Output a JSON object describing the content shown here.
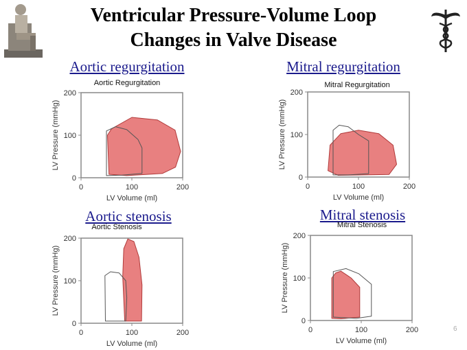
{
  "slide": {
    "title_line1": "Ventricular Pressure-Volume Loop",
    "title_line2": "Changes in Valve Disease",
    "page_number": "6",
    "left_image": "seated-statue-figure",
    "right_image": "caduceus-icon"
  },
  "colors": {
    "fill": "#e88080",
    "fill_stroke": "#b03a3a",
    "outline": "#555555",
    "heading": "#1a1a8c"
  },
  "chart_data": [
    {
      "type": "line",
      "heading": "Aortic regurgitation",
      "title": "Aortic Regurgitation",
      "xlabel": "LV  Volume (ml)",
      "ylabel": "LV  Pressure (mmHg)",
      "xlim": [
        0,
        200
      ],
      "ylim": [
        0,
        200
      ],
      "xticks": [
        "0",
        "100",
        "200"
      ],
      "yticks": [
        "0",
        "100",
        "200"
      ],
      "series": [
        {
          "role": "disease",
          "points": [
            [
              55,
              8
            ],
            [
              52,
              100
            ],
            [
              60,
              115
            ],
            [
              100,
              142
            ],
            [
              150,
              136
            ],
            [
              185,
              112
            ],
            [
              196,
              62
            ],
            [
              186,
              25
            ],
            [
              160,
              10
            ],
            [
              90,
              5
            ]
          ]
        },
        {
          "role": "normal",
          "points": [
            [
              50,
              5
            ],
            [
              50,
              110
            ],
            [
              68,
              120
            ],
            [
              90,
              113
            ],
            [
              112,
              90
            ],
            [
              120,
              70
            ],
            [
              120,
              10
            ],
            [
              80,
              6
            ]
          ]
        }
      ]
    },
    {
      "type": "line",
      "heading": "Mitral regurgitation",
      "title": "Mitral Regurgitation",
      "xlabel": "LV  Volume (ml)",
      "ylabel": "LV  Pressure (mmHg)",
      "xlim": [
        0,
        200
      ],
      "ylim": [
        0,
        200
      ],
      "xticks": [
        "0",
        "100",
        "200"
      ],
      "yticks": [
        "0",
        "100",
        "200"
      ],
      "series": [
        {
          "role": "disease",
          "points": [
            [
              40,
              15
            ],
            [
              44,
              75
            ],
            [
              65,
              102
            ],
            [
              100,
              110
            ],
            [
              140,
              102
            ],
            [
              168,
              75
            ],
            [
              175,
              30
            ],
            [
              160,
              6
            ],
            [
              60,
              4
            ]
          ]
        },
        {
          "role": "normal",
          "points": [
            [
              50,
              5
            ],
            [
              50,
              110
            ],
            [
              62,
              122
            ],
            [
              80,
              118
            ],
            [
              100,
              100
            ],
            [
              120,
              85
            ],
            [
              120,
              8
            ],
            [
              80,
              5
            ]
          ]
        }
      ]
    },
    {
      "type": "line",
      "heading": "Aortic stenosis",
      "title": "Aortic Stenosis",
      "xlabel": "LV  Volume (ml)",
      "ylabel": "LV  Pressure (mmHg)",
      "xlim": [
        0,
        200
      ],
      "ylim": [
        0,
        200
      ],
      "xticks": [
        "0",
        "100",
        "200"
      ],
      "yticks": [
        "0",
        "100",
        "200"
      ],
      "series": [
        {
          "role": "disease",
          "points": [
            [
              86,
              5
            ],
            [
              82,
              110
            ],
            [
              84,
              175
            ],
            [
              92,
              198
            ],
            [
              104,
              192
            ],
            [
              114,
              155
            ],
            [
              120,
              90
            ],
            [
              119,
              5
            ]
          ]
        },
        {
          "role": "normal",
          "points": [
            [
              48,
              5
            ],
            [
              47,
              112
            ],
            [
              58,
              121
            ],
            [
              75,
              118
            ],
            [
              88,
              100
            ],
            [
              90,
              60
            ],
            [
              88,
              5
            ]
          ]
        }
      ]
    },
    {
      "type": "line",
      "heading": "Mitral stenosis",
      "title": "Mitral Stenosis",
      "xlabel": "LV  Volume (ml)",
      "ylabel": "LV  Pressure (mmHg)",
      "xlim": [
        0,
        200
      ],
      "ylim": [
        0,
        200
      ],
      "xticks": [
        "0",
        "100",
        "200"
      ],
      "yticks": [
        "0",
        "100",
        "200"
      ],
      "series": [
        {
          "role": "disease",
          "points": [
            [
              42,
              5
            ],
            [
              42,
              100
            ],
            [
              50,
              112
            ],
            [
              60,
              116
            ],
            [
              80,
              100
            ],
            [
              97,
              78
            ],
            [
              97,
              8
            ],
            [
              60,
              4
            ]
          ]
        },
        {
          "role": "normal",
          "points": [
            [
              45,
              8
            ],
            [
              45,
              115
            ],
            [
              70,
              122
            ],
            [
              95,
              110
            ],
            [
              120,
              85
            ],
            [
              120,
              10
            ],
            [
              90,
              5
            ]
          ]
        }
      ]
    }
  ]
}
